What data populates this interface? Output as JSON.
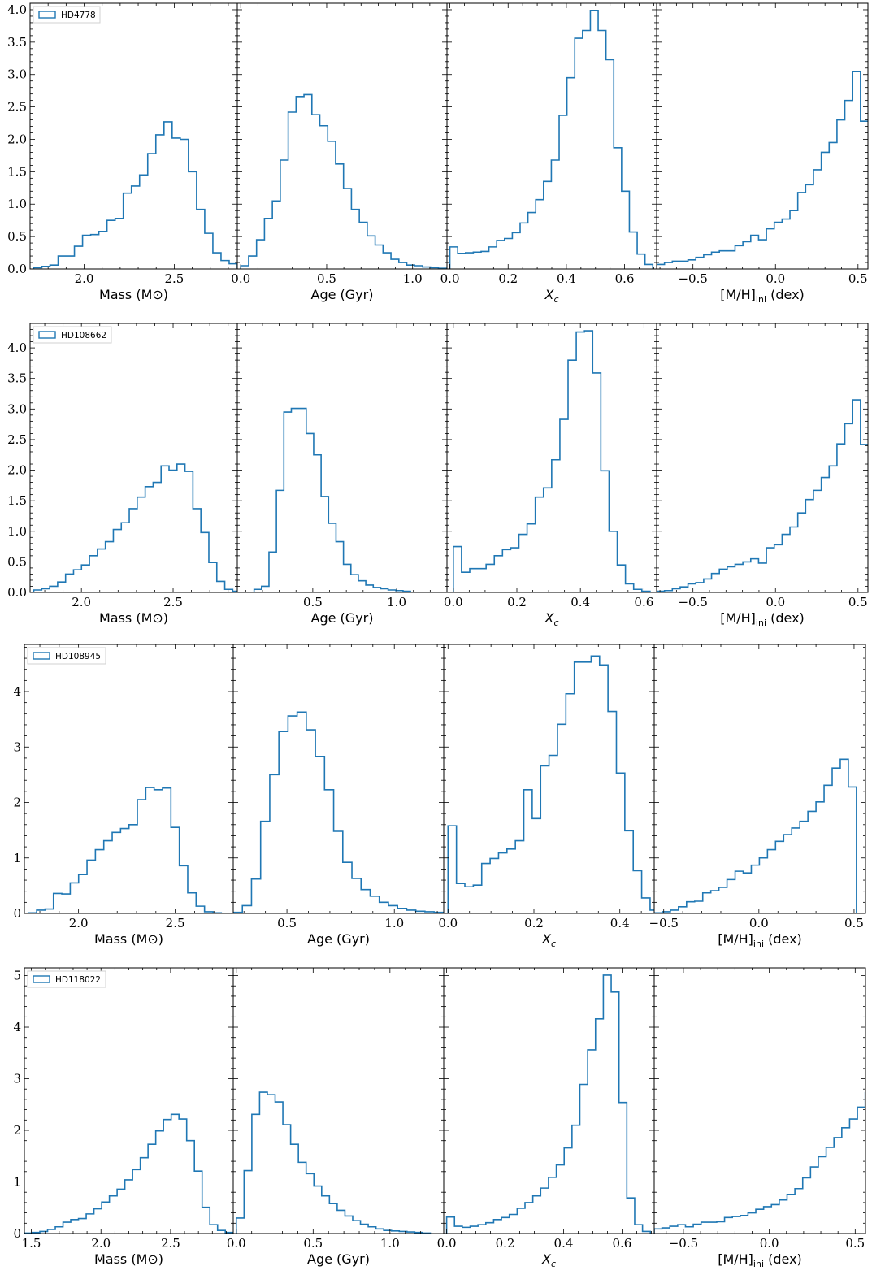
{
  "figure": {
    "line_color": "#1f77b4"
  },
  "chart_data": [
    {
      "type": "histogram",
      "star": "HD4778",
      "row": 0,
      "col": 0,
      "xlabel": "Mass (M⊙)",
      "xlim": [
        1.7,
        2.85
      ],
      "ylim": [
        0,
        4.1
      ],
      "xticks": [
        2.0,
        2.5
      ],
      "xtick_labels": [
        "2.0",
        "2.5"
      ],
      "yticks": [
        0,
        0.5,
        1,
        1.5,
        2,
        2.5,
        3,
        3.5,
        4
      ],
      "ytick_labels": [
        "0.0",
        "0.5",
        "1.0",
        "1.5",
        "2.0",
        "2.5",
        "3.0",
        "3.5",
        "4.0"
      ],
      "bin_start": 1.72,
      "bin_width": 0.0452,
      "values": [
        0.02,
        0.04,
        0.06,
        0.2,
        0.2,
        0.35,
        0.52,
        0.53,
        0.58,
        0.75,
        0.78,
        1.17,
        1.28,
        1.45,
        1.78,
        2.07,
        2.27,
        2.02,
        2.0,
        1.5,
        0.92,
        0.55,
        0.25,
        0.13,
        0.08,
        0.02
      ]
    },
    {
      "type": "histogram",
      "star": "HD4778",
      "row": 0,
      "col": 1,
      "xlabel": "Age (Gyr)",
      "xlim": [
        -0.02,
        1.2
      ],
      "ylim": [
        0,
        4.1
      ],
      "xticks": [
        0.0,
        0.5,
        1.0
      ],
      "xtick_labels": [
        "0.0",
        "0.5",
        "1.0"
      ],
      "bin_start": 0.0,
      "bin_width": 0.046,
      "values": [
        0.05,
        0.2,
        0.45,
        0.78,
        1.05,
        1.68,
        2.42,
        2.66,
        2.69,
        2.38,
        2.21,
        1.97,
        1.62,
        1.24,
        0.92,
        0.72,
        0.51,
        0.37,
        0.25,
        0.15,
        0.1,
        0.06,
        0.05,
        0.03,
        0.02,
        0.01
      ]
    },
    {
      "type": "histogram",
      "star": "HD4778",
      "row": 0,
      "col": 2,
      "xlabel": "Xc",
      "xlim": [
        -0.01,
        0.71
      ],
      "ylim": [
        0,
        4.1
      ],
      "xticks": [
        0.0,
        0.2,
        0.4,
        0.6
      ],
      "xtick_labels": [
        "0.0",
        "0.2",
        "0.4",
        "0.6"
      ],
      "bin_start": 0.0,
      "bin_width": 0.0268,
      "values": [
        0.34,
        0.24,
        0.25,
        0.26,
        0.27,
        0.34,
        0.44,
        0.47,
        0.56,
        0.71,
        0.87,
        1.07,
        1.35,
        1.68,
        2.37,
        2.95,
        3.56,
        3.68,
        3.99,
        3.68,
        3.23,
        1.87,
        1.2,
        0.57,
        0.23,
        0.07
      ]
    },
    {
      "type": "histogram",
      "star": "HD4778",
      "row": 0,
      "col": 3,
      "xlabel": "[M/H]ini (dex)",
      "xlim": [
        -0.72,
        0.56
      ],
      "ylim": [
        0,
        4.1
      ],
      "xticks": [
        -0.5,
        0.0,
        0.5
      ],
      "xtick_labels": [
        "−0.5",
        "0.0",
        "0.5"
      ],
      "bin_start": -0.72,
      "bin_width": 0.0475,
      "values": [
        0.07,
        0.1,
        0.12,
        0.12,
        0.14,
        0.18,
        0.22,
        0.26,
        0.28,
        0.28,
        0.36,
        0.42,
        0.52,
        0.45,
        0.62,
        0.72,
        0.77,
        0.9,
        1.18,
        1.3,
        1.53,
        1.8,
        1.95,
        2.3,
        2.6,
        3.05,
        2.28
      ]
    },
    {
      "type": "histogram",
      "star": "HD108662",
      "row": 1,
      "col": 0,
      "xlabel": "Mass (M⊙)",
      "xlim": [
        1.72,
        2.85
      ],
      "ylim": [
        0,
        4.4
      ],
      "xticks": [
        2.0,
        2.5
      ],
      "xtick_labels": [
        "2.0",
        "2.5"
      ],
      "yticks": [
        0,
        0.5,
        1,
        1.5,
        2,
        2.5,
        3,
        3.5,
        4
      ],
      "ytick_labels": [
        "0.0",
        "0.5",
        "1.0",
        "1.5",
        "2.0",
        "2.5",
        "3.0",
        "3.5",
        "4.0"
      ],
      "bin_start": 1.74,
      "bin_width": 0.0434,
      "values": [
        0.04,
        0.06,
        0.1,
        0.17,
        0.3,
        0.37,
        0.45,
        0.6,
        0.71,
        0.83,
        1.03,
        1.14,
        1.37,
        1.56,
        1.73,
        1.8,
        2.07,
        2.0,
        2.1,
        1.98,
        1.37,
        0.98,
        0.49,
        0.18,
        0.05,
        0.02
      ]
    },
    {
      "type": "histogram",
      "star": "HD108662",
      "row": 1,
      "col": 1,
      "xlabel": "Age (Gyr)",
      "xlim": [
        0.05,
        1.3
      ],
      "ylim": [
        0,
        4.4
      ],
      "xticks": [
        0.5,
        1.0
      ],
      "xtick_labels": [
        "0.5",
        "1.0"
      ],
      "bin_start": 0.15,
      "bin_width": 0.0444,
      "values": [
        0.05,
        0.1,
        0.66,
        1.67,
        2.95,
        3.01,
        3.01,
        2.6,
        2.25,
        1.57,
        1.13,
        0.83,
        0.46,
        0.29,
        0.19,
        0.12,
        0.08,
        0.06,
        0.04,
        0.03,
        0.02
      ]
    },
    {
      "type": "histogram",
      "star": "HD108662",
      "row": 1,
      "col": 2,
      "xlabel": "Xc",
      "xlim": [
        -0.02,
        0.64
      ],
      "ylim": [
        0,
        4.4
      ],
      "xticks": [
        0.0,
        0.2,
        0.4,
        0.6
      ],
      "xtick_labels": [
        "0.0",
        "0.2",
        "0.4",
        "0.6"
      ],
      "bin_start": 0.0,
      "bin_width": 0.0258,
      "values": [
        0.75,
        0.33,
        0.39,
        0.39,
        0.46,
        0.6,
        0.7,
        0.73,
        0.95,
        1.12,
        1.56,
        1.71,
        2.17,
        2.83,
        3.8,
        4.26,
        4.28,
        3.59,
        1.99,
        1.0,
        0.45,
        0.14,
        0.05,
        0.02
      ]
    },
    {
      "type": "histogram",
      "star": "HD108662",
      "row": 1,
      "col": 3,
      "xlabel": "[M/H]ini (dex)",
      "xlim": [
        -0.72,
        0.56
      ],
      "ylim": [
        0,
        4.4
      ],
      "xticks": [
        -0.5,
        0.0,
        0.5
      ],
      "xtick_labels": [
        "−0.5",
        "0.0",
        "0.5"
      ],
      "bin_start": -0.72,
      "bin_width": 0.0475,
      "values": [
        0.02,
        0.03,
        0.06,
        0.09,
        0.14,
        0.16,
        0.22,
        0.31,
        0.38,
        0.42,
        0.46,
        0.5,
        0.55,
        0.48,
        0.73,
        0.78,
        0.95,
        1.07,
        1.3,
        1.52,
        1.67,
        1.88,
        2.07,
        2.43,
        2.76,
        3.15,
        2.42
      ]
    },
    {
      "type": "histogram",
      "star": "HD108945",
      "row": 2,
      "col": 0,
      "xlabel": "Mass (M⊙)",
      "xlim": [
        1.72,
        2.8
      ],
      "ylim": [
        0,
        4.85
      ],
      "xticks": [
        2.0,
        2.5
      ],
      "xtick_labels": [
        "2.0",
        "2.5"
      ],
      "yticks": [
        0,
        1,
        2,
        3,
        4
      ],
      "ytick_labels": [
        "0",
        "1",
        "2",
        "3",
        "4"
      ],
      "bin_start": 1.74,
      "bin_width": 0.0434,
      "values": [
        0.01,
        0.06,
        0.08,
        0.36,
        0.35,
        0.55,
        0.7,
        0.96,
        1.15,
        1.31,
        1.46,
        1.53,
        1.6,
        2.05,
        2.27,
        2.23,
        2.26,
        1.55,
        0.86,
        0.37,
        0.13,
        0.03,
        0.01
      ]
    },
    {
      "type": "histogram",
      "star": "HD108945",
      "row": 2,
      "col": 1,
      "xlabel": "Age (Gyr)",
      "xlim": [
        0.25,
        1.23
      ],
      "ylim": [
        0,
        4.85
      ],
      "xticks": [
        0.5,
        1.0
      ],
      "xtick_labels": [
        "0.5",
        "1.0"
      ],
      "bin_start": 0.25,
      "bin_width": 0.0425,
      "values": [
        0.02,
        0.14,
        0.62,
        1.66,
        2.5,
        3.28,
        3.56,
        3.63,
        3.31,
        2.83,
        2.23,
        1.48,
        0.92,
        0.63,
        0.43,
        0.31,
        0.2,
        0.14,
        0.09,
        0.06,
        0.04,
        0.03,
        0.02
      ]
    },
    {
      "type": "histogram",
      "star": "HD108945",
      "row": 2,
      "col": 2,
      "xlabel": "Xc",
      "xlim": [
        -0.01,
        0.48
      ],
      "ylim": [
        0,
        4.85
      ],
      "xticks": [
        0.0,
        0.2,
        0.4
      ],
      "xtick_labels": [
        "0.0",
        "0.2",
        "0.4"
      ],
      "bin_start": 0.0,
      "bin_width": 0.0196,
      "values": [
        1.58,
        0.54,
        0.48,
        0.51,
        0.9,
        0.99,
        1.09,
        1.16,
        1.31,
        2.23,
        1.71,
        2.66,
        2.85,
        3.41,
        3.96,
        4.53,
        4.53,
        4.64,
        4.48,
        3.64,
        2.53,
        1.49,
        0.77,
        0.28,
        0.06
      ]
    },
    {
      "type": "histogram",
      "star": "HD108945",
      "row": 2,
      "col": 3,
      "xlabel": "[M/H]ini (dex)",
      "xlim": [
        -0.55,
        0.56
      ],
      "ylim": [
        0,
        4.85
      ],
      "xticks": [
        -0.5,
        0.0,
        0.5
      ],
      "xtick_labels": [
        "−0.5",
        "0.0",
        "0.5"
      ],
      "bin_start": -0.55,
      "bin_width": 0.0425,
      "values": [
        0.01,
        0.03,
        0.06,
        0.12,
        0.21,
        0.22,
        0.37,
        0.41,
        0.47,
        0.61,
        0.76,
        0.73,
        0.87,
        1.0,
        1.15,
        1.3,
        1.42,
        1.54,
        1.66,
        1.84,
        2.01,
        2.31,
        2.62,
        2.78,
        2.28
      ]
    },
    {
      "type": "histogram",
      "star": "HD118022",
      "row": 3,
      "col": 0,
      "xlabel": "Mass (M⊙)",
      "xlim": [
        1.45,
        2.95
      ],
      "ylim": [
        0,
        5.15
      ],
      "xticks": [
        1.5,
        2.0,
        2.5
      ],
      "xtick_labels": [
        "1.5",
        "2.0",
        "2.5"
      ],
      "yticks": [
        0,
        1,
        2,
        3,
        4,
        5
      ],
      "ytick_labels": [
        "0",
        "1",
        "2",
        "3",
        "4",
        "5"
      ],
      "bin_start": 1.45,
      "bin_width": 0.0555,
      "values": [
        0.01,
        0.02,
        0.04,
        0.08,
        0.13,
        0.22,
        0.27,
        0.29,
        0.38,
        0.48,
        0.61,
        0.73,
        0.86,
        1.04,
        1.24,
        1.47,
        1.73,
        1.99,
        2.21,
        2.31,
        2.22,
        1.8,
        1.21,
        0.51,
        0.17,
        0.06,
        0.02
      ]
    },
    {
      "type": "histogram",
      "star": "HD118022",
      "row": 3,
      "col": 1,
      "xlabel": "Age (Gyr)",
      "xlim": [
        -0.02,
        1.35
      ],
      "ylim": [
        0,
        5.15
      ],
      "xticks": [
        0.0,
        0.5,
        1.0
      ],
      "xtick_labels": [
        "0.0",
        "0.5",
        "1.0"
      ],
      "bin_start": 0.0,
      "bin_width": 0.0505,
      "values": [
        0.3,
        1.22,
        2.31,
        2.74,
        2.69,
        2.55,
        2.11,
        1.73,
        1.38,
        1.16,
        0.92,
        0.73,
        0.58,
        0.45,
        0.34,
        0.25,
        0.18,
        0.13,
        0.09,
        0.06,
        0.05,
        0.04,
        0.03,
        0.02,
        0.01
      ]
    },
    {
      "type": "histogram",
      "star": "HD118022",
      "row": 3,
      "col": 2,
      "xlabel": "Xc",
      "xlim": [
        -0.01,
        0.71
      ],
      "ylim": [
        0,
        5.15
      ],
      "xticks": [
        0.0,
        0.2,
        0.4,
        0.6
      ],
      "xtick_labels": [
        "0.0",
        "0.2",
        "0.4",
        "0.6"
      ],
      "bin_start": 0.0,
      "bin_width": 0.0268,
      "values": [
        0.32,
        0.14,
        0.12,
        0.14,
        0.17,
        0.21,
        0.27,
        0.31,
        0.37,
        0.49,
        0.6,
        0.73,
        0.88,
        1.09,
        1.33,
        1.66,
        2.1,
        2.89,
        3.56,
        4.16,
        5.01,
        4.68,
        2.54,
        0.69,
        0.17,
        0.04
      ]
    },
    {
      "type": "histogram",
      "star": "HD118022",
      "row": 3,
      "col": 3,
      "xlabel": "[M/H]ini (dex)",
      "xlim": [
        -0.67,
        0.56
      ],
      "ylim": [
        0,
        5.15
      ],
      "xticks": [
        -0.5,
        0.0,
        0.5
      ],
      "xtick_labels": [
        "−0.5",
        "0.0",
        "0.5"
      ],
      "bin_start": -0.67,
      "bin_width": 0.0455,
      "values": [
        0.09,
        0.11,
        0.14,
        0.17,
        0.13,
        0.18,
        0.22,
        0.22,
        0.23,
        0.31,
        0.33,
        0.35,
        0.4,
        0.47,
        0.52,
        0.56,
        0.65,
        0.76,
        0.87,
        1.08,
        1.29,
        1.49,
        1.67,
        1.86,
        2.05,
        2.22,
        2.45,
        2.73,
        2.25
      ]
    }
  ]
}
